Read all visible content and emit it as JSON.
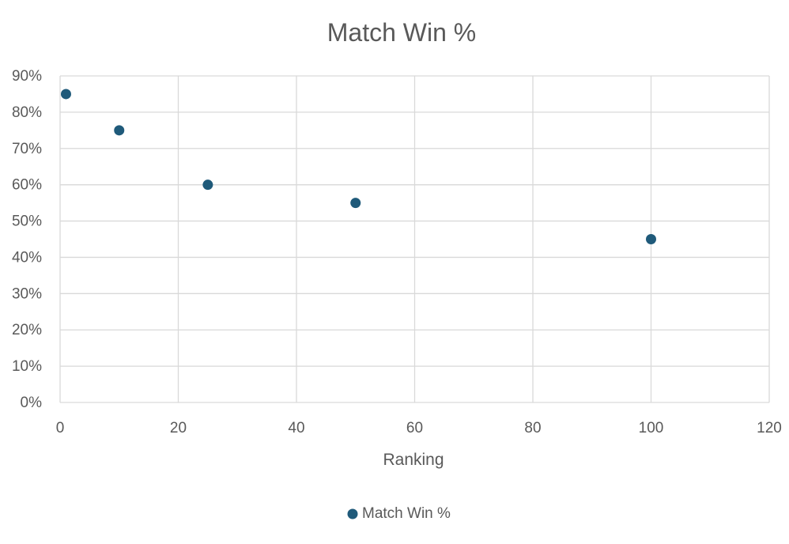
{
  "chart_data": {
    "type": "scatter",
    "title": "Match Win %",
    "xlabel": "Ranking",
    "ylabel": "",
    "xlim": [
      0,
      120
    ],
    "ylim": [
      0,
      0.9
    ],
    "xticks": [
      0,
      20,
      40,
      60,
      80,
      100,
      120
    ],
    "xtick_labels": [
      "0",
      "20",
      "40",
      "60",
      "80",
      "100",
      "120"
    ],
    "yticks": [
      0,
      0.1,
      0.2,
      0.3,
      0.4,
      0.5,
      0.6,
      0.7,
      0.8,
      0.9
    ],
    "ytick_labels": [
      "0%",
      "10%",
      "20%",
      "30%",
      "40%",
      "50%",
      "60%",
      "70%",
      "80%",
      "90%"
    ],
    "grid": true,
    "legend_position": "bottom",
    "series": [
      {
        "name": "Match Win %",
        "color": "#1f5a7a",
        "points": [
          {
            "x": 1,
            "y": 0.85
          },
          {
            "x": 10,
            "y": 0.75
          },
          {
            "x": 25,
            "y": 0.6
          },
          {
            "x": 50,
            "y": 0.55
          },
          {
            "x": 100,
            "y": 0.45
          }
        ]
      }
    ]
  }
}
